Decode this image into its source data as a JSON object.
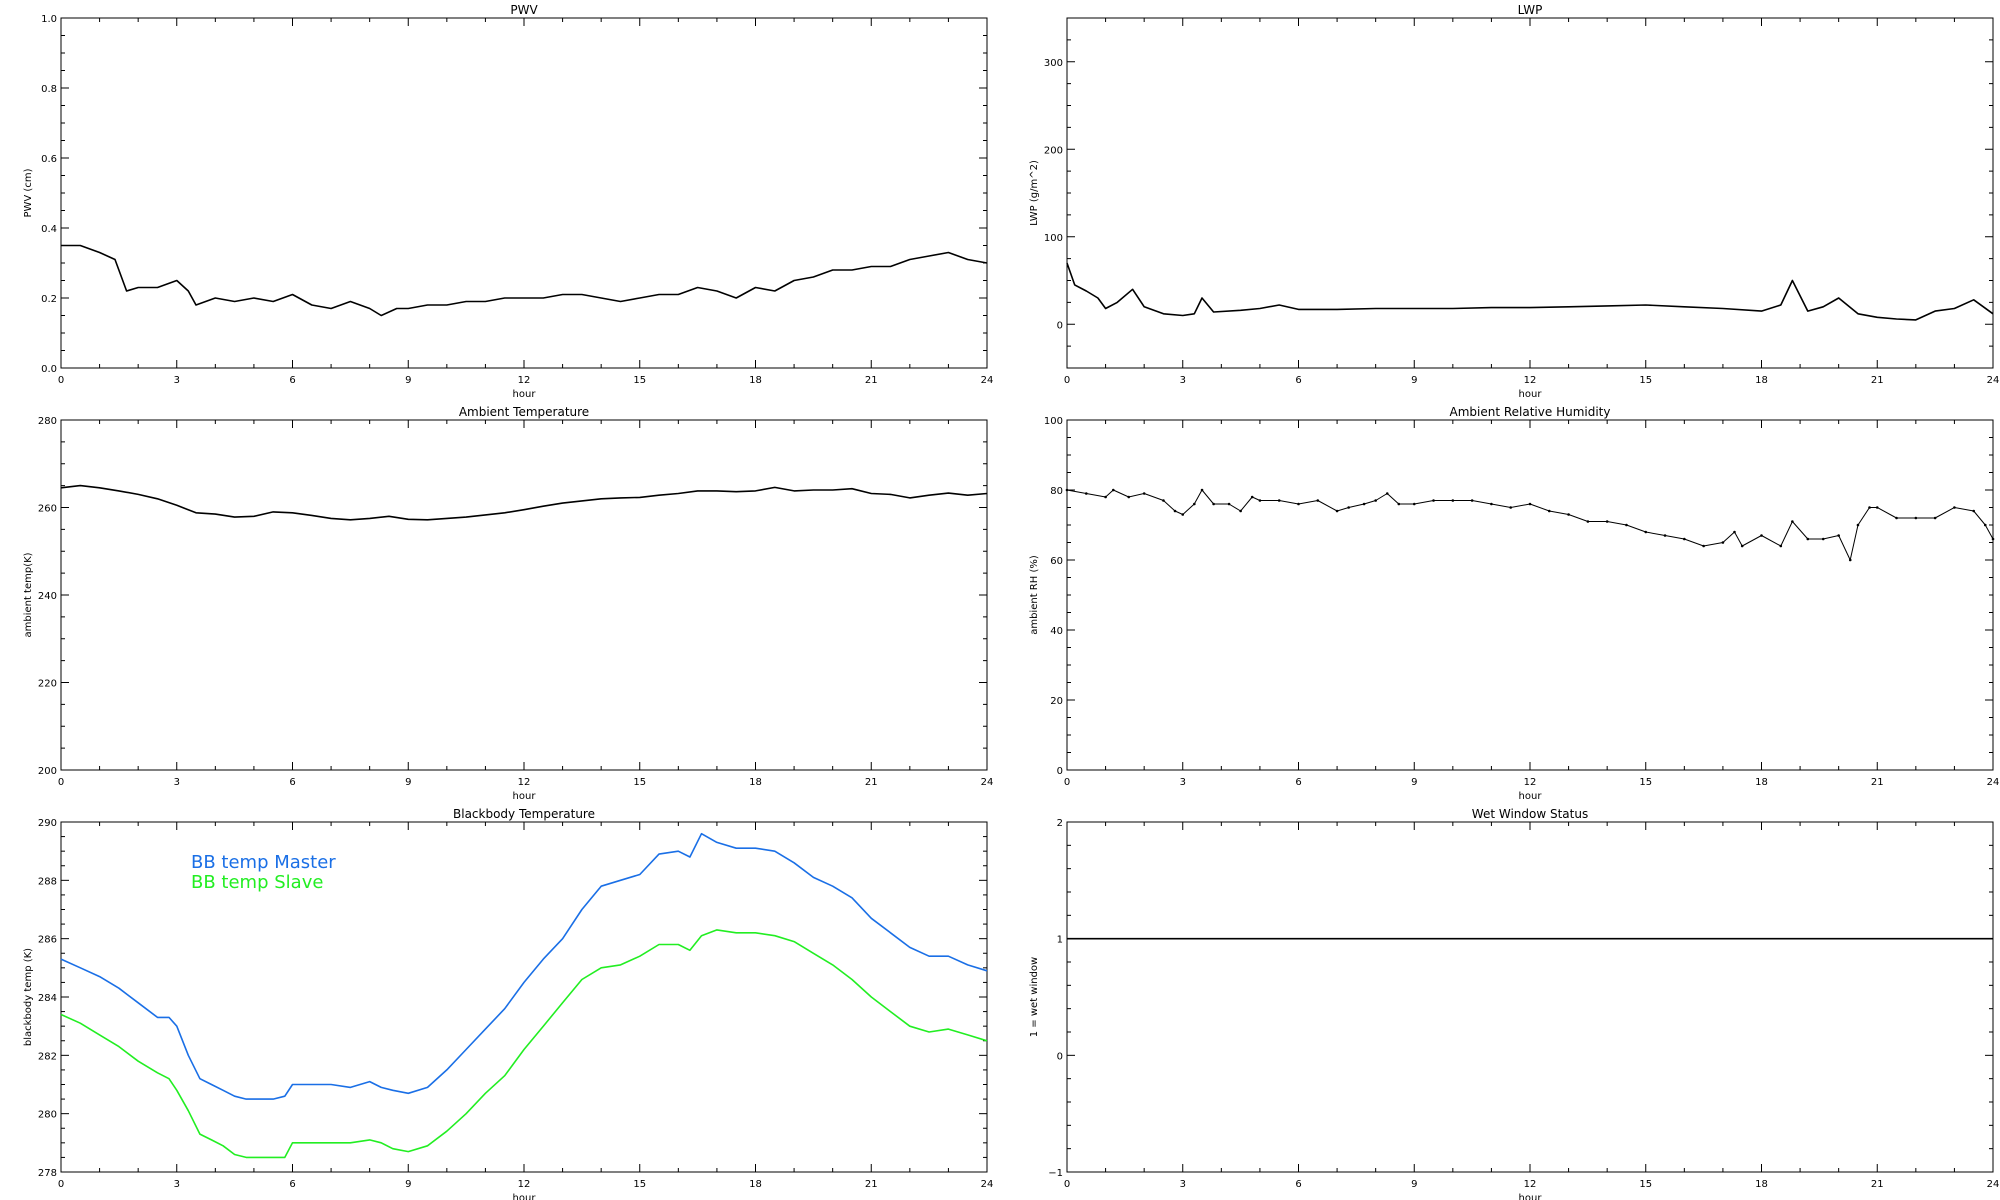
{
  "chart_data": [
    {
      "type": "line",
      "title": "PWV",
      "xlabel": "hour",
      "ylabel": "PWV (cm)",
      "xlim": [
        0,
        24
      ],
      "ylim": [
        0,
        1.0
      ],
      "xticks": [
        0,
        3,
        6,
        9,
        12,
        15,
        18,
        21,
        24
      ],
      "yticks": [
        0.0,
        0.2,
        0.4,
        0.6,
        0.8,
        1.0
      ],
      "ytick_labels": [
        "0.0",
        "0.2",
        "0.4",
        "0.6",
        "0.8",
        "1.0"
      ],
      "series": [
        {
          "color": "#000000",
          "x": [
            0,
            0.5,
            1.0,
            1.4,
            1.7,
            2.0,
            2.5,
            3.0,
            3.3,
            3.5,
            4.0,
            4.5,
            5.0,
            5.5,
            6.0,
            6.5,
            7.0,
            7.5,
            8.0,
            8.3,
            8.7,
            9.0,
            9.5,
            10.0,
            10.5,
            11.0,
            11.5,
            12.0,
            12.5,
            13.0,
            13.5,
            14.0,
            14.5,
            15.0,
            15.5,
            16.0,
            16.5,
            17.0,
            17.5,
            18.0,
            18.5,
            19.0,
            19.5,
            20.0,
            20.5,
            21.0,
            21.5,
            22.0,
            22.5,
            23.0,
            23.5,
            24.0
          ],
          "y": [
            0.35,
            0.35,
            0.33,
            0.31,
            0.22,
            0.23,
            0.23,
            0.25,
            0.22,
            0.18,
            0.2,
            0.19,
            0.2,
            0.19,
            0.21,
            0.18,
            0.17,
            0.19,
            0.17,
            0.15,
            0.17,
            0.17,
            0.18,
            0.18,
            0.19,
            0.19,
            0.2,
            0.2,
            0.2,
            0.21,
            0.21,
            0.2,
            0.19,
            0.2,
            0.21,
            0.21,
            0.23,
            0.22,
            0.2,
            0.23,
            0.22,
            0.25,
            0.26,
            0.28,
            0.28,
            0.29,
            0.29,
            0.31,
            0.32,
            0.33,
            0.31,
            0.3
          ]
        }
      ]
    },
    {
      "type": "line",
      "title": "LWP",
      "xlabel": "hour",
      "ylabel": "LWP (g/m^2)",
      "xlim": [
        0,
        24
      ],
      "ylim": [
        -50,
        350
      ],
      "xticks": [
        0,
        3,
        6,
        9,
        12,
        15,
        18,
        21,
        24
      ],
      "yticks": [
        0,
        100,
        200,
        300
      ],
      "ytick_labels": [
        "0",
        "100",
        "200",
        "300"
      ],
      "series": [
        {
          "color": "#000000",
          "x": [
            0,
            0.2,
            0.5,
            0.8,
            1.0,
            1.3,
            1.7,
            2.0,
            2.5,
            3.0,
            3.3,
            3.5,
            3.8,
            4.5,
            5.0,
            5.5,
            6.0,
            7.0,
            8.0,
            9.0,
            10.0,
            11.0,
            12.0,
            13.0,
            14.0,
            15.0,
            16.0,
            17.0,
            18.0,
            18.5,
            18.8,
            19.2,
            19.6,
            20.0,
            20.5,
            21.0,
            21.5,
            22.0,
            22.5,
            23.0,
            23.5,
            24.0
          ],
          "y": [
            70,
            45,
            38,
            30,
            18,
            25,
            40,
            20,
            12,
            10,
            12,
            30,
            14,
            16,
            18,
            22,
            17,
            17,
            18,
            18,
            18,
            19,
            19,
            20,
            21,
            22,
            20,
            18,
            15,
            22,
            50,
            15,
            20,
            30,
            12,
            8,
            6,
            5,
            15,
            18,
            28,
            12
          ]
        }
      ]
    },
    {
      "type": "line",
      "title": "Ambient Temperature",
      "xlabel": "hour",
      "ylabel": "ambient temp(K)",
      "xlim": [
        0,
        24
      ],
      "ylim": [
        200,
        280
      ],
      "xticks": [
        0,
        3,
        6,
        9,
        12,
        15,
        18,
        21,
        24
      ],
      "yticks": [
        200,
        220,
        240,
        260,
        280
      ],
      "ytick_labels": [
        "200",
        "220",
        "240",
        "260",
        "280"
      ],
      "series": [
        {
          "color": "#000000",
          "x": [
            0,
            0.5,
            1.0,
            1.5,
            2.0,
            2.5,
            3.0,
            3.5,
            4.0,
            4.5,
            5.0,
            5.5,
            6.0,
            6.5,
            7.0,
            7.5,
            8.0,
            8.5,
            9.0,
            9.5,
            10.0,
            10.5,
            11.0,
            11.5,
            12.0,
            12.5,
            13.0,
            13.5,
            14.0,
            14.5,
            15.0,
            15.5,
            16.0,
            16.5,
            17.0,
            17.5,
            18.0,
            18.5,
            19.0,
            19.5,
            20.0,
            20.5,
            21.0,
            21.5,
            22.0,
            22.5,
            23.0,
            23.5,
            24.0
          ],
          "y": [
            264.5,
            265.0,
            264.5,
            263.8,
            263.0,
            262.0,
            260.5,
            258.8,
            258.5,
            257.8,
            258.0,
            259.0,
            258.8,
            258.2,
            257.5,
            257.2,
            257.5,
            258.0,
            257.3,
            257.2,
            257.5,
            257.8,
            258.3,
            258.8,
            259.5,
            260.3,
            261.0,
            261.5,
            262.0,
            262.2,
            262.3,
            262.8,
            263.2,
            263.8,
            263.8,
            263.6,
            263.8,
            264.6,
            263.8,
            264.0,
            264.0,
            264.3,
            263.2,
            263.0,
            262.2,
            262.8,
            263.3,
            262.8,
            263.2
          ]
        }
      ]
    },
    {
      "type": "scatter",
      "title": "Ambient Relative Humidity",
      "xlabel": "hour",
      "ylabel": "ambient RH (%)",
      "xlim": [
        0,
        24
      ],
      "ylim": [
        0,
        100
      ],
      "xticks": [
        0,
        3,
        6,
        9,
        12,
        15,
        18,
        21,
        24
      ],
      "yticks": [
        0,
        20,
        40,
        60,
        80,
        100
      ],
      "ytick_labels": [
        "0",
        "20",
        "40",
        "60",
        "80",
        "100"
      ],
      "series": [
        {
          "color": "#000000",
          "x": [
            0,
            0.5,
            1.0,
            1.2,
            1.6,
            2.0,
            2.5,
            2.8,
            3.0,
            3.3,
            3.5,
            3.8,
            4.2,
            4.5,
            4.8,
            5.0,
            5.5,
            6.0,
            6.5,
            7.0,
            7.3,
            7.7,
            8.0,
            8.3,
            8.6,
            9.0,
            9.5,
            10.0,
            10.5,
            11.0,
            11.5,
            12.0,
            12.5,
            13.0,
            13.5,
            14.0,
            14.5,
            15.0,
            15.5,
            16.0,
            16.5,
            17.0,
            17.3,
            17.5,
            18.0,
            18.5,
            18.8,
            19.2,
            19.6,
            20.0,
            20.3,
            20.5,
            20.8,
            21.0,
            21.5,
            22.0,
            22.5,
            23.0,
            23.5,
            23.8,
            24.0
          ],
          "y": [
            80,
            79,
            78,
            80,
            78,
            79,
            77,
            74,
            73,
            76,
            80,
            76,
            76,
            74,
            78,
            77,
            77,
            76,
            77,
            74,
            75,
            76,
            77,
            79,
            76,
            76,
            77,
            77,
            77,
            76,
            75,
            76,
            74,
            73,
            71,
            71,
            70,
            68,
            67,
            66,
            64,
            65,
            68,
            64,
            67,
            64,
            71,
            66,
            66,
            67,
            60,
            70,
            75,
            75,
            72,
            72,
            72,
            75,
            74,
            70,
            66
          ]
        }
      ]
    },
    {
      "type": "line",
      "title": "Blackbody Temperature",
      "xlabel": "hour",
      "ylabel": "blackbody temp (K)",
      "xlim": [
        0,
        24
      ],
      "ylim": [
        278,
        290
      ],
      "xticks": [
        0,
        3,
        6,
        9,
        12,
        15,
        18,
        21,
        24
      ],
      "yticks": [
        278,
        280,
        282,
        284,
        286,
        288,
        290
      ],
      "ytick_labels": [
        "278",
        "280",
        "282",
        "284",
        "286",
        "288",
        "290"
      ],
      "legend": "top-left",
      "series": [
        {
          "name": "BB temp Master",
          "color": "#1a6fe6",
          "x": [
            0,
            0.5,
            1.0,
            1.5,
            2.0,
            2.5,
            2.8,
            3.0,
            3.3,
            3.6,
            3.9,
            4.2,
            4.5,
            4.8,
            5.0,
            5.5,
            5.8,
            6.0,
            6.5,
            7.0,
            7.5,
            8.0,
            8.3,
            8.6,
            9.0,
            9.5,
            10.0,
            10.5,
            11.0,
            11.5,
            12.0,
            12.5,
            13.0,
            13.5,
            14.0,
            14.5,
            15.0,
            15.5,
            16.0,
            16.3,
            16.6,
            17.0,
            17.5,
            18.0,
            18.5,
            19.0,
            19.5,
            20.0,
            20.5,
            21.0,
            21.5,
            22.0,
            22.5,
            23.0,
            23.5,
            24.0
          ],
          "y": [
            285.3,
            285.0,
            284.7,
            284.3,
            283.8,
            283.3,
            283.3,
            283.0,
            282.0,
            281.2,
            281.0,
            280.8,
            280.6,
            280.5,
            280.5,
            280.5,
            280.6,
            281.0,
            281.0,
            281.0,
            280.9,
            281.1,
            280.9,
            280.8,
            280.7,
            280.9,
            281.5,
            282.2,
            282.9,
            283.6,
            284.5,
            285.3,
            286.0,
            287.0,
            287.8,
            288.0,
            288.2,
            288.9,
            289.0,
            288.8,
            289.6,
            289.3,
            289.1,
            289.1,
            289.0,
            288.6,
            288.1,
            287.8,
            287.4,
            286.7,
            286.2,
            285.7,
            285.4,
            285.4,
            285.1,
            284.9
          ]
        },
        {
          "name": "BB temp Slave",
          "color": "#22ee22",
          "x": [
            0,
            0.5,
            1.0,
            1.5,
            2.0,
            2.5,
            2.8,
            3.0,
            3.3,
            3.6,
            3.9,
            4.2,
            4.5,
            4.8,
            5.0,
            5.5,
            5.8,
            6.0,
            6.5,
            7.0,
            7.5,
            8.0,
            8.3,
            8.6,
            9.0,
            9.5,
            10.0,
            10.5,
            11.0,
            11.5,
            12.0,
            12.5,
            13.0,
            13.5,
            14.0,
            14.5,
            15.0,
            15.5,
            16.0,
            16.3,
            16.6,
            17.0,
            17.5,
            18.0,
            18.5,
            19.0,
            19.5,
            20.0,
            20.5,
            21.0,
            21.5,
            22.0,
            22.5,
            23.0,
            23.5,
            24.0
          ],
          "y": [
            283.4,
            283.1,
            282.7,
            282.3,
            281.8,
            281.4,
            281.2,
            280.8,
            280.1,
            279.3,
            279.1,
            278.9,
            278.6,
            278.5,
            278.5,
            278.5,
            278.5,
            279.0,
            279.0,
            279.0,
            279.0,
            279.1,
            279.0,
            278.8,
            278.7,
            278.9,
            279.4,
            280.0,
            280.7,
            281.3,
            282.2,
            283.0,
            283.8,
            284.6,
            285.0,
            285.1,
            285.4,
            285.8,
            285.8,
            285.6,
            286.1,
            286.3,
            286.2,
            286.2,
            286.1,
            285.9,
            285.5,
            285.1,
            284.6,
            284.0,
            283.5,
            283.0,
            282.8,
            282.9,
            282.7,
            282.5
          ]
        }
      ]
    },
    {
      "type": "line",
      "title": "Wet Window Status",
      "xlabel": "hour",
      "ylabel": "1 = wet window",
      "xlim": [
        0,
        24
      ],
      "ylim": [
        -1,
        2
      ],
      "xticks": [
        0,
        3,
        6,
        9,
        12,
        15,
        18,
        21,
        24
      ],
      "yticks": [
        -1,
        0,
        1,
        2
      ],
      "ytick_labels": [
        "−1",
        "0",
        "1",
        "2"
      ],
      "series": [
        {
          "color": "#000000",
          "x": [
            0,
            24
          ],
          "y": [
            1,
            1
          ]
        }
      ]
    }
  ]
}
